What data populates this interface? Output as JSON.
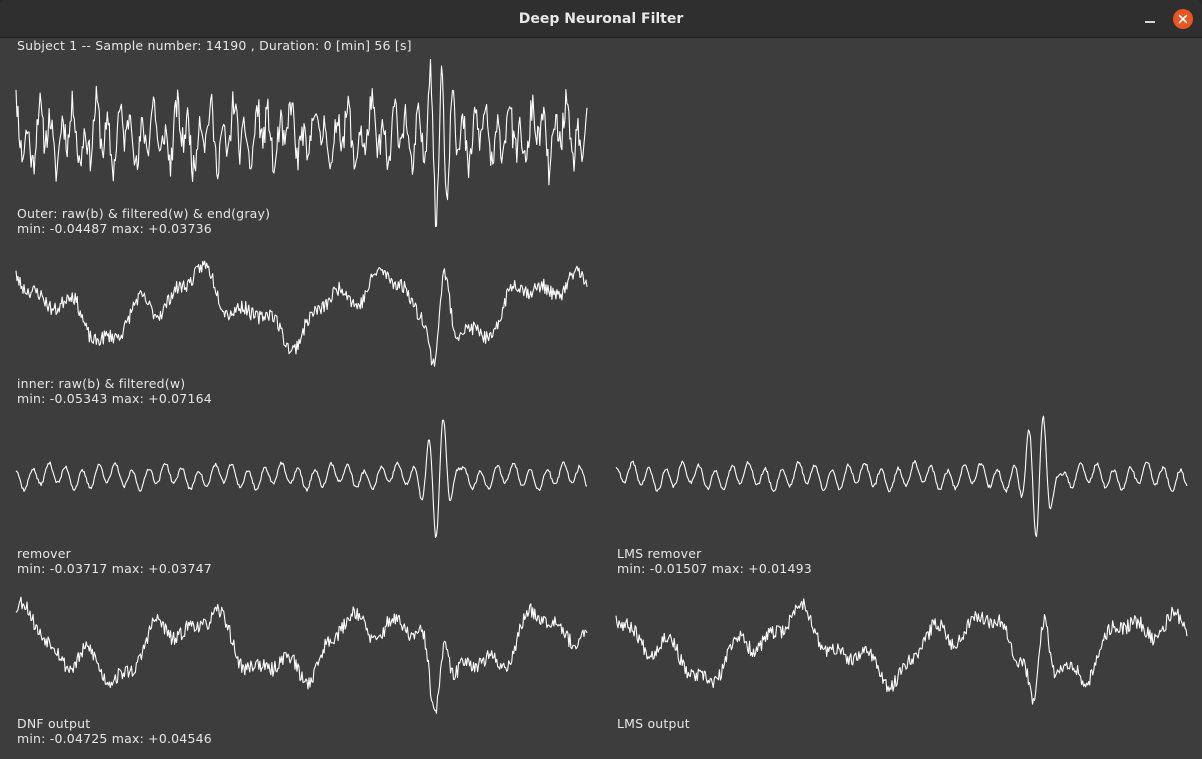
{
  "window": {
    "title": "Deep Neuronal Filter"
  },
  "header": {
    "text": "Subject 1 -- Sample number: 14190 , Duration: 0 [min] 56 [s]"
  },
  "panels": {
    "outer": {
      "name": "Outer: raw(b) & filtered(w) & end(gray)",
      "stats": "min: -0.04487 max: +0.03736"
    },
    "inner": {
      "name": "inner: raw(b) & filtered(w)",
      "stats": "min: -0.05343 max: +0.07164"
    },
    "remover": {
      "name": "remover",
      "stats": "min: -0.03717 max: +0.03747"
    },
    "lms_remover": {
      "name": "LMS remover",
      "stats": "min: -0.01507 max: +0.01493"
    },
    "dnf_output": {
      "name": "DNF output",
      "stats": "min: -0.04725 max: +0.04546"
    },
    "lms_output": {
      "name": "LMS output"
    }
  },
  "colors": {
    "background": "#3d3d3d",
    "trace": "#ffffff",
    "close_button": "#e95420"
  }
}
